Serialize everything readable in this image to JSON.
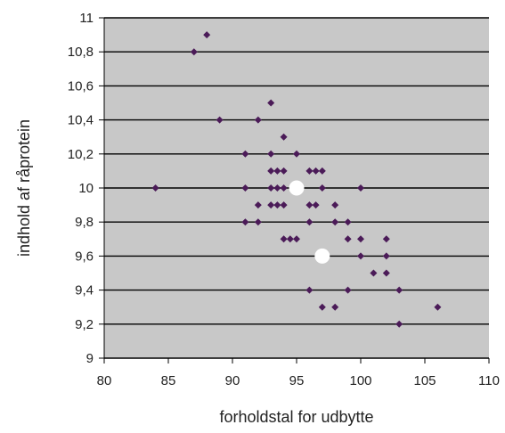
{
  "chart_data": {
    "type": "scatter",
    "title": "",
    "xlabel": "forholdstal for udbytte",
    "ylabel": "indhold af råprotein",
    "xlim": [
      80,
      110
    ],
    "ylim": [
      9,
      11
    ],
    "x_ticks": [
      "80",
      "85",
      "90",
      "95",
      "100",
      "105",
      "110"
    ],
    "y_ticks": [
      "9",
      "9,2",
      "9,4",
      "9,6",
      "9,8",
      "10",
      "10,2",
      "10,4",
      "10,6",
      "10,8",
      "11"
    ],
    "grid": "horizontal",
    "legend": "none",
    "colors": {
      "plot_background": "#c8c8c8",
      "grid": "#000000",
      "marker": "#4b1b58",
      "highlight": "#ffffff"
    },
    "series": [
      {
        "marker": "diamond",
        "points": [
          [
            84,
            10.0
          ],
          [
            87,
            10.8
          ],
          [
            88,
            10.9
          ],
          [
            89,
            10.4
          ],
          [
            91,
            10.2
          ],
          [
            91,
            10.0
          ],
          [
            91,
            9.8
          ],
          [
            92,
            10.4
          ],
          [
            92,
            9.9
          ],
          [
            92,
            9.8
          ],
          [
            93,
            10.5
          ],
          [
            93,
            10.2
          ],
          [
            93,
            10.1
          ],
          [
            93,
            10.0
          ],
          [
            93,
            9.9
          ],
          [
            93.5,
            10.1
          ],
          [
            93.5,
            10.0
          ],
          [
            93.5,
            9.9
          ],
          [
            94,
            10.3
          ],
          [
            94,
            10.1
          ],
          [
            94,
            10.0
          ],
          [
            94,
            9.9
          ],
          [
            94,
            9.7
          ],
          [
            94.5,
            9.7
          ],
          [
            95,
            10.2
          ],
          [
            95,
            9.7
          ],
          [
            96,
            10.1
          ],
          [
            96,
            9.9
          ],
          [
            96,
            9.8
          ],
          [
            96,
            9.4
          ],
          [
            96.5,
            10.1
          ],
          [
            96.5,
            9.9
          ],
          [
            97,
            10.1
          ],
          [
            97,
            10.0
          ],
          [
            97,
            9.3
          ],
          [
            98,
            9.9
          ],
          [
            98,
            9.8
          ],
          [
            98,
            9.3
          ],
          [
            99,
            9.8
          ],
          [
            99,
            9.7
          ],
          [
            99,
            9.4
          ],
          [
            100,
            10.0
          ],
          [
            100,
            9.7
          ],
          [
            100,
            9.6
          ],
          [
            101,
            9.5
          ],
          [
            102,
            9.7
          ],
          [
            102,
            9.6
          ],
          [
            102,
            9.5
          ],
          [
            103,
            9.4
          ],
          [
            103,
            9.2
          ],
          [
            106,
            9.3
          ]
        ]
      },
      {
        "marker": "circle",
        "points": [
          [
            95,
            10.0
          ],
          [
            97,
            9.6
          ]
        ]
      }
    ]
  }
}
